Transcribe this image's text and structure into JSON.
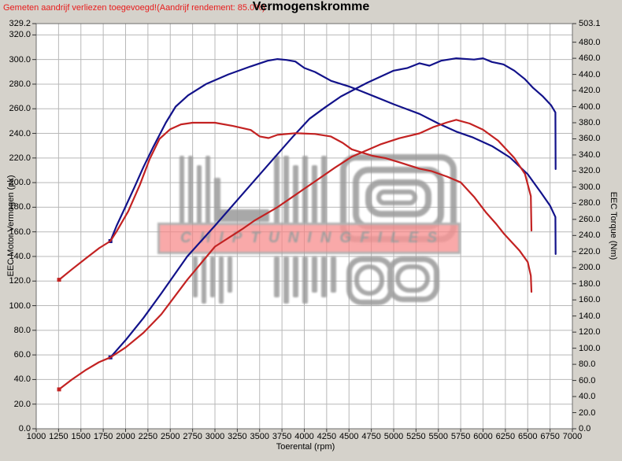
{
  "header": {
    "note": "Gemeten aandrijf verliezen toegevoegd!(Aandrijf rendement: 85.0%)",
    "title": "Vermogenskromme"
  },
  "colors": {
    "background": "#d5d2cb",
    "plot_background": "#ffffff",
    "grid": "#b8b8b8",
    "plot_border": "#6e6e6e",
    "blue_run": "#12128a",
    "red_run": "#c32222",
    "note_text": "#e81c1c",
    "watermark_gray": "#9a9a9a",
    "watermark_band": "#f78484"
  },
  "watermark": {
    "text": "CHIPTUNINGFILES"
  },
  "chart_data": {
    "type": "line",
    "title": "Vermogenskromme",
    "xlabel": "Toerental (rpm)",
    "ylabel_left": "EEC Motor Vermogen (pk)",
    "ylabel_right": "EEC Torque (Nm)",
    "x_range": [
      1000,
      7000
    ],
    "x_ticks": [
      1000,
      1250,
      1500,
      1750,
      2000,
      2250,
      2500,
      2750,
      3000,
      3250,
      3500,
      3750,
      4000,
      4250,
      4500,
      4750,
      5000,
      5250,
      5500,
      5750,
      6000,
      6250,
      6500,
      6750,
      7000
    ],
    "y_left_range": [
      0,
      329.2
    ],
    "y_left_ticks": [
      0,
      20,
      40,
      60,
      80,
      100,
      120,
      140,
      160,
      180,
      200,
      220,
      240,
      260,
      280,
      300,
      320,
      329.2
    ],
    "y_right_range": [
      0,
      503.1
    ],
    "y_right_ticks": [
      0,
      20,
      40,
      60,
      80,
      100,
      120,
      140,
      160,
      180,
      200,
      220,
      240,
      260,
      280,
      300,
      320,
      340,
      360,
      380,
      400,
      420,
      440,
      460,
      480,
      503.1
    ],
    "grid": true,
    "legend": "none",
    "series": [
      {
        "name": "blue-torque",
        "unit": "Nm",
        "axis": "right",
        "color": "#12128a",
        "points": [
          [
            1830,
            233
          ],
          [
            1900,
            252
          ],
          [
            2000,
            276
          ],
          [
            2100,
            300
          ],
          [
            2200,
            325
          ],
          [
            2310,
            350
          ],
          [
            2450,
            380
          ],
          [
            2560,
            400
          ],
          [
            2700,
            414
          ],
          [
            2900,
            428
          ],
          [
            3150,
            440
          ],
          [
            3400,
            450
          ],
          [
            3590,
            457
          ],
          [
            3700,
            459
          ],
          [
            3800,
            458
          ],
          [
            3900,
            456
          ],
          [
            4000,
            448
          ],
          [
            4120,
            443
          ],
          [
            4300,
            432
          ],
          [
            4500,
            425
          ],
          [
            4620,
            420
          ],
          [
            4800,
            412
          ],
          [
            5000,
            403
          ],
          [
            5290,
            391
          ],
          [
            5500,
            379
          ],
          [
            5700,
            369
          ],
          [
            5880,
            362
          ],
          [
            6100,
            351
          ],
          [
            6300,
            337
          ],
          [
            6500,
            316
          ],
          [
            6650,
            293
          ],
          [
            6750,
            277
          ],
          [
            6810,
            263
          ],
          [
            6812,
            217
          ]
        ]
      },
      {
        "name": "blue-power",
        "unit": "pk",
        "axis": "left",
        "color": "#12128a",
        "points": [
          [
            1830,
            58
          ],
          [
            2000,
            72
          ],
          [
            2200,
            90
          ],
          [
            2400,
            110
          ],
          [
            2690,
            140
          ],
          [
            3000,
            165
          ],
          [
            3300,
            190
          ],
          [
            3590,
            214
          ],
          [
            3880,
            238
          ],
          [
            4060,
            252
          ],
          [
            4230,
            261
          ],
          [
            4410,
            270
          ],
          [
            4700,
            281
          ],
          [
            5000,
            291
          ],
          [
            5150,
            293
          ],
          [
            5290,
            297
          ],
          [
            5400,
            295
          ],
          [
            5530,
            299
          ],
          [
            5700,
            301
          ],
          [
            5900,
            300
          ],
          [
            6000,
            301
          ],
          [
            6100,
            298
          ],
          [
            6230,
            296
          ],
          [
            6350,
            291
          ],
          [
            6470,
            284
          ],
          [
            6560,
            277
          ],
          [
            6670,
            270
          ],
          [
            6760,
            263
          ],
          [
            6810,
            257
          ],
          [
            6812,
            211
          ]
        ]
      },
      {
        "name": "red-torque",
        "unit": "Nm",
        "axis": "right",
        "color": "#c32222",
        "points": [
          [
            1256,
            185
          ],
          [
            1400,
            198
          ],
          [
            1560,
            212
          ],
          [
            1700,
            224
          ],
          [
            1830,
            233
          ],
          [
            1900,
            245
          ],
          [
            2030,
            270
          ],
          [
            2160,
            303
          ],
          [
            2270,
            335
          ],
          [
            2380,
            360
          ],
          [
            2500,
            372
          ],
          [
            2620,
            378
          ],
          [
            2750,
            380
          ],
          [
            3000,
            380
          ],
          [
            3200,
            376
          ],
          [
            3400,
            371
          ],
          [
            3500,
            363
          ],
          [
            3600,
            361
          ],
          [
            3700,
            365
          ],
          [
            3900,
            367
          ],
          [
            4120,
            366
          ],
          [
            4295,
            363
          ],
          [
            4430,
            355
          ],
          [
            4530,
            347
          ],
          [
            4760,
            339
          ],
          [
            4910,
            336
          ],
          [
            5060,
            331
          ],
          [
            5290,
            323
          ],
          [
            5420,
            320
          ],
          [
            5600,
            313
          ],
          [
            5750,
            306
          ],
          [
            5900,
            288
          ],
          [
            6030,
            269
          ],
          [
            6150,
            254
          ],
          [
            6235,
            242
          ],
          [
            6410,
            221
          ],
          [
            6500,
            207
          ],
          [
            6535,
            190
          ],
          [
            6542,
            170
          ]
        ]
      },
      {
        "name": "red-power",
        "unit": "pk",
        "axis": "left",
        "color": "#c32222",
        "points": [
          [
            1256,
            32
          ],
          [
            1400,
            40
          ],
          [
            1560,
            48
          ],
          [
            1700,
            54
          ],
          [
            1830,
            58
          ],
          [
            2000,
            66
          ],
          [
            2200,
            78
          ],
          [
            2400,
            93
          ],
          [
            2690,
            121
          ],
          [
            3000,
            148
          ],
          [
            3300,
            162
          ],
          [
            3440,
            169
          ],
          [
            3700,
            180
          ],
          [
            3880,
            189
          ],
          [
            4100,
            200
          ],
          [
            4340,
            212
          ],
          [
            4530,
            221
          ],
          [
            4850,
            231
          ],
          [
            5060,
            236
          ],
          [
            5290,
            240
          ],
          [
            5440,
            245
          ],
          [
            5600,
            249
          ],
          [
            5700,
            251
          ],
          [
            5850,
            248
          ],
          [
            6000,
            243
          ],
          [
            6170,
            234
          ],
          [
            6350,
            220
          ],
          [
            6470,
            207
          ],
          [
            6535,
            189
          ],
          [
            6542,
            161
          ]
        ]
      }
    ]
  }
}
